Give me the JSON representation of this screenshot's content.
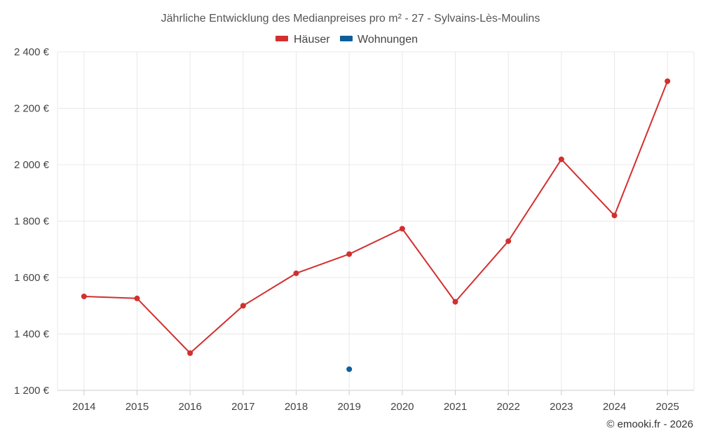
{
  "chart_data": {
    "type": "line",
    "title": "Jährliche Entwicklung des Medianpreises pro m² - 27 - Sylvains-Lès-Moulins",
    "categories": [
      "2014",
      "2015",
      "2016",
      "2017",
      "2018",
      "2019",
      "2020",
      "2021",
      "2022",
      "2023",
      "2024",
      "2025"
    ],
    "series": [
      {
        "name": "Häuser",
        "color": "#d32f2f",
        "values": [
          1533,
          1526,
          1332,
          1500,
          1615,
          1683,
          1773,
          1514,
          1729,
          2019,
          1820,
          2296
        ]
      },
      {
        "name": "Wohnungen",
        "color": "#0d5f9a",
        "values": [
          null,
          null,
          null,
          null,
          null,
          1275,
          null,
          null,
          null,
          null,
          null,
          null
        ]
      }
    ],
    "ylim": [
      1200,
      2400
    ],
    "yticks": [
      1200,
      1400,
      1600,
      1800,
      2000,
      2200,
      2400
    ],
    "ytick_labels": [
      "1 200 €",
      "1 400 €",
      "1 600 €",
      "1 800 €",
      "2 000 €",
      "2 200 €",
      "2 400 €"
    ],
    "grid": true,
    "legend_position": "top-center",
    "credit": "© emooki.fr - 2026"
  }
}
